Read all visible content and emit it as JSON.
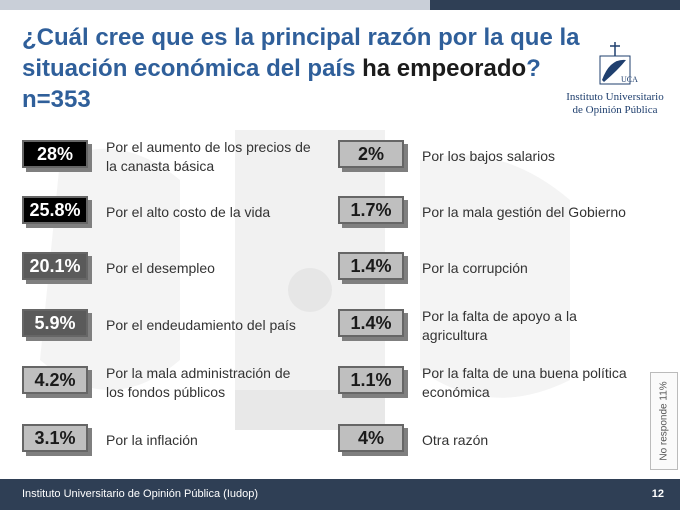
{
  "header": {
    "title_part1": "¿Cuál cree que es la principal razón por la que la situación económica del país ",
    "title_highlight": "ha empeorado",
    "title_part2": "?",
    "sample": "n=353"
  },
  "logo": {
    "line1": "Instituto Universitario",
    "line2": "de Opinión Pública",
    "emblem_letters": "UCA"
  },
  "chart_data": {
    "type": "table",
    "unit": "%",
    "items": [
      {
        "value": 28,
        "value_label": "28%",
        "label": "Por el aumento de los precios de la canasta básica"
      },
      {
        "value": 25.8,
        "value_label": "25.8%",
        "label": "Por el alto costo de la vida"
      },
      {
        "value": 20.1,
        "value_label": "20.1%",
        "label": "Por el desempleo"
      },
      {
        "value": 5.9,
        "value_label": "5.9%",
        "label": "Por el endeudamiento del país"
      },
      {
        "value": 4.2,
        "value_label": "4.2%",
        "label": "Por la mala administración de los fondos públicos"
      },
      {
        "value": 3.1,
        "value_label": "3.1%",
        "label": "Por la inflación"
      },
      {
        "value": 2,
        "value_label": "2%",
        "label": "Por los bajos salarios"
      },
      {
        "value": 1.7,
        "value_label": "1.7%",
        "label": "Por la mala gestión del Gobierno"
      },
      {
        "value": 1.4,
        "value_label": "1.4%",
        "label": "Por la corrupción"
      },
      {
        "value": 1.4,
        "value_label": "1.4%",
        "label": "Por la falta de apoyo a la agricultura"
      },
      {
        "value": 1.1,
        "value_label": "1.1%",
        "label": "Por la falta de una buena política económica"
      },
      {
        "value": 4,
        "value_label": "4%",
        "label": "Otra razón"
      }
    ],
    "no_response": "No responde   11%"
  },
  "colors": {
    "dark_fill": "#000000",
    "dark_text": "#ffffff",
    "mid_fill": "#5a5a5a",
    "light_fill": "#bfbfbf",
    "light_text": "#1a1a1a",
    "title": "#2f5f9a",
    "band": "#2f3f55"
  },
  "footer": {
    "text": "Instituto Universitario de Opinión Pública (Iudop)",
    "page": "12"
  }
}
